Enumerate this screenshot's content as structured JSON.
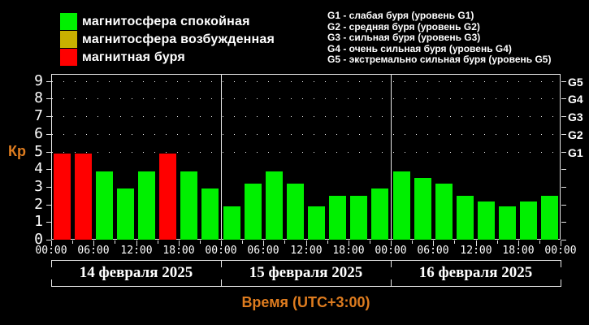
{
  "colors": {
    "background": "#000000",
    "quiet_green": "#00f000",
    "excited_yellow": "#c8b000",
    "storm_red": "#ff0000",
    "axis": "#e6e6e6",
    "text_white": "#ffffff",
    "accent_orange": "#de7c1f"
  },
  "legend": {
    "items": [
      {
        "label": "магнитосфера спокойная",
        "status": "quiet",
        "color": "#00f000"
      },
      {
        "label": "магнитосфера возбужденная",
        "status": "excited",
        "color": "#c8b000"
      },
      {
        "label": "магнитная буря",
        "status": "storm",
        "color": "#ff0000"
      }
    ]
  },
  "storm_scale_info": {
    "lines": [
      "G1 - слабая буря (уровень G1)",
      "G2 - средняя буря (уровень G2)",
      "G3 - сильная буря (уровень G3)",
      "G4 - очень сильная буря (уровень G4)",
      "G5 - экстремально сильная буря (уровень G5)"
    ]
  },
  "chart_data": {
    "type": "bar",
    "title": "",
    "ylabel": "Кр",
    "xlabel": "Время (UTC+3:00)",
    "ylim": [
      0,
      9.4
    ],
    "ytick_labels": [
      "0",
      "1",
      "2",
      "3",
      "4",
      "5",
      "6",
      "7",
      "8",
      "9"
    ],
    "grid": "dotted horizontal lines only at storm thresholds Kp 5-9",
    "dotted_threshold_levels": [
      5,
      6,
      7,
      8,
      9
    ],
    "right_axis": {
      "labels": [
        "G1",
        "G2",
        "G3",
        "G4",
        "G5"
      ],
      "kp_levels": [
        5,
        6,
        7,
        8,
        9
      ]
    },
    "bar_interval_hours": 3,
    "x_tick_labels": [
      "00:00",
      "06:00",
      "12:00",
      "18:00",
      "00:00",
      "06:00",
      "12:00",
      "18:00",
      "00:00",
      "06:00",
      "12:00",
      "18:00",
      "00:00"
    ],
    "days": [
      {
        "date": "14 февраля 2025",
        "values": [
          4.7,
          4.7,
          3.7,
          2.7,
          3.7,
          4.7,
          3.7,
          2.7
        ],
        "statuses": [
          "storm",
          "storm",
          "quiet",
          "quiet",
          "quiet",
          "storm",
          "quiet",
          "quiet"
        ]
      },
      {
        "date": "15 февраля 2025",
        "values": [
          1.7,
          3.0,
          3.7,
          3.0,
          1.7,
          2.3,
          2.3,
          2.7
        ],
        "statuses": [
          "quiet",
          "quiet",
          "quiet",
          "quiet",
          "quiet",
          "quiet",
          "quiet",
          "quiet"
        ]
      },
      {
        "date": "16 февраля 2025",
        "values": [
          3.7,
          3.3,
          3.0,
          2.3,
          2.0,
          1.7,
          2.0,
          2.3
        ],
        "statuses": [
          "quiet",
          "quiet",
          "quiet",
          "quiet",
          "quiet",
          "quiet",
          "quiet",
          "quiet"
        ]
      }
    ],
    "status_colors": {
      "quiet": "#00f000",
      "excited": "#c8b000",
      "storm": "#ff0000"
    }
  }
}
